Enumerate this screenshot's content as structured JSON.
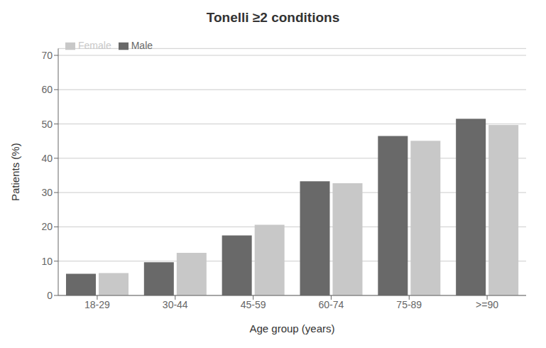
{
  "chart_data": {
    "type": "bar",
    "title": "Tonelli ≥2 conditions",
    "categories": [
      "18-29",
      "30-44",
      "45-59",
      "60-74",
      "75-89",
      ">=90"
    ],
    "series": [
      {
        "name": "Male",
        "color": "#696969",
        "values": [
          6.3,
          9.7,
          17.5,
          33.3,
          46.5,
          51.5
        ]
      },
      {
        "name": "Female",
        "color": "#c8c8c8",
        "values": [
          6.5,
          12.4,
          20.6,
          32.7,
          45.1,
          49.7
        ]
      }
    ],
    "x_label": "Age group (years)",
    "y_label": "Patients (%)",
    "ylim": [
      0,
      72
    ],
    "yticks": [
      0,
      10,
      20,
      30,
      40,
      50,
      60,
      70
    ],
    "grid": true,
    "legend": "upper left"
  }
}
